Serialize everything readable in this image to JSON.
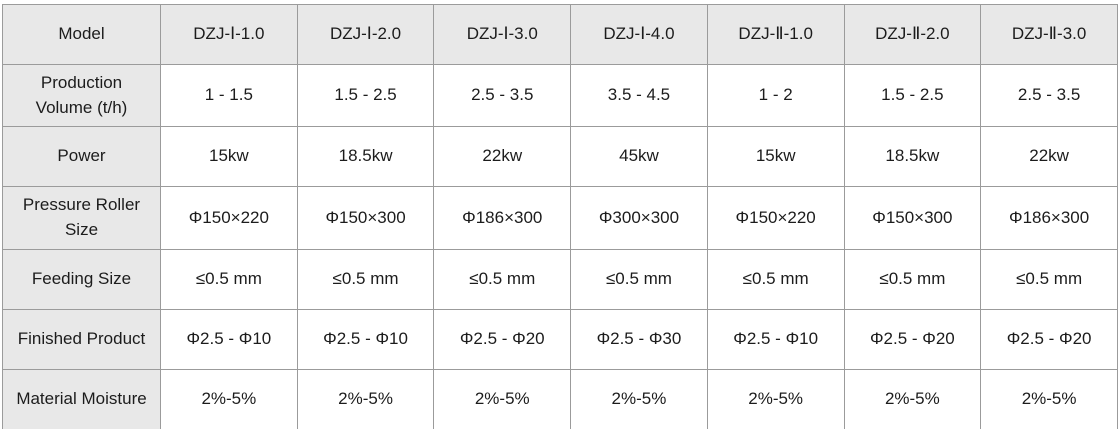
{
  "table": {
    "corner_label": "Model",
    "columns": [
      "DZJ-Ⅰ-1.0",
      "DZJ-Ⅰ-2.0",
      "DZJ-Ⅰ-3.0",
      "DZJ-Ⅰ-4.0",
      "DZJ-Ⅱ-1.0",
      "DZJ-Ⅱ-2.0",
      "DZJ-Ⅱ-3.0"
    ],
    "rows": [
      {
        "label": "Production Volume (t/h)",
        "values": [
          "1 - 1.5",
          "1.5 - 2.5",
          "2.5 - 3.5",
          "3.5 - 4.5",
          "1 - 2",
          "1.5 - 2.5",
          "2.5 - 3.5"
        ]
      },
      {
        "label": "Power",
        "values": [
          "15kw",
          "18.5kw",
          "22kw",
          "45kw",
          "15kw",
          "18.5kw",
          "22kw"
        ]
      },
      {
        "label": "Pressure Roller Size",
        "values": [
          "Φ150×220",
          "Φ150×300",
          "Φ186×300",
          "Φ300×300",
          "Φ150×220",
          "Φ150×300",
          "Φ186×300"
        ]
      },
      {
        "label": "Feeding Size",
        "values": [
          "≤0.5 mm",
          "≤0.5 mm",
          "≤0.5 mm",
          "≤0.5 mm",
          "≤0.5 mm",
          "≤0.5 mm",
          "≤0.5 mm"
        ]
      },
      {
        "label": "Finished Product",
        "values": [
          "Φ2.5 - Φ10",
          "Φ2.5 - Φ10",
          "Φ2.5 - Φ20",
          "Φ2.5 - Φ30",
          "Φ2.5 - Φ10",
          "Φ2.5 - Φ20",
          "Φ2.5 - Φ20"
        ]
      },
      {
        "label": "Material Moisture",
        "values": [
          "2%-5%",
          "2%-5%",
          "2%-5%",
          "2%-5%",
          "2%-5%",
          "2%-5%",
          "2%-5%"
        ]
      }
    ],
    "colors": {
      "header_bg": "#e8e8e8",
      "cell_bg": "#ffffff",
      "border": "#9b9b9b",
      "text": "#1c1c1c"
    }
  },
  "chart_data": {
    "type": "table",
    "title": "",
    "header_row": [
      "Model",
      "DZJ-Ⅰ-1.0",
      "DZJ-Ⅰ-2.0",
      "DZJ-Ⅰ-3.0",
      "DZJ-Ⅰ-4.0",
      "DZJ-Ⅱ-1.0",
      "DZJ-Ⅱ-2.0",
      "DZJ-Ⅱ-3.0"
    ],
    "body_rows": [
      [
        "Production Volume (t/h)",
        "1 - 1.5",
        "1.5 - 2.5",
        "2.5 - 3.5",
        "3.5 - 4.5",
        "1 - 2",
        "1.5 - 2.5",
        "2.5 - 3.5"
      ],
      [
        "Power",
        "15kw",
        "18.5kw",
        "22kw",
        "45kw",
        "15kw",
        "18.5kw",
        "22kw"
      ],
      [
        "Pressure Roller Size",
        "Φ150×220",
        "Φ150×300",
        "Φ186×300",
        "Φ300×300",
        "Φ150×220",
        "Φ150×300",
        "Φ186×300"
      ],
      [
        "Feeding Size",
        "≤0.5 mm",
        "≤0.5 mm",
        "≤0.5 mm",
        "≤0.5 mm",
        "≤0.5 mm",
        "≤0.5 mm",
        "≤0.5 mm"
      ],
      [
        "Finished Product",
        "Φ2.5 - Φ10",
        "Φ2.5 - Φ10",
        "Φ2.5 - Φ20",
        "Φ2.5 - Φ30",
        "Φ2.5 - Φ10",
        "Φ2.5 - Φ20",
        "Φ2.5 - Φ20"
      ],
      [
        "Material Moisture",
        "2%-5%",
        "2%-5%",
        "2%-5%",
        "2%-5%",
        "2%-5%",
        "2%-5%",
        "2%-5%"
      ]
    ],
    "layout_hints": {
      "grid": true,
      "header_style": "gray header row and gray first label column",
      "first_column_is_row_labels": true
    }
  }
}
